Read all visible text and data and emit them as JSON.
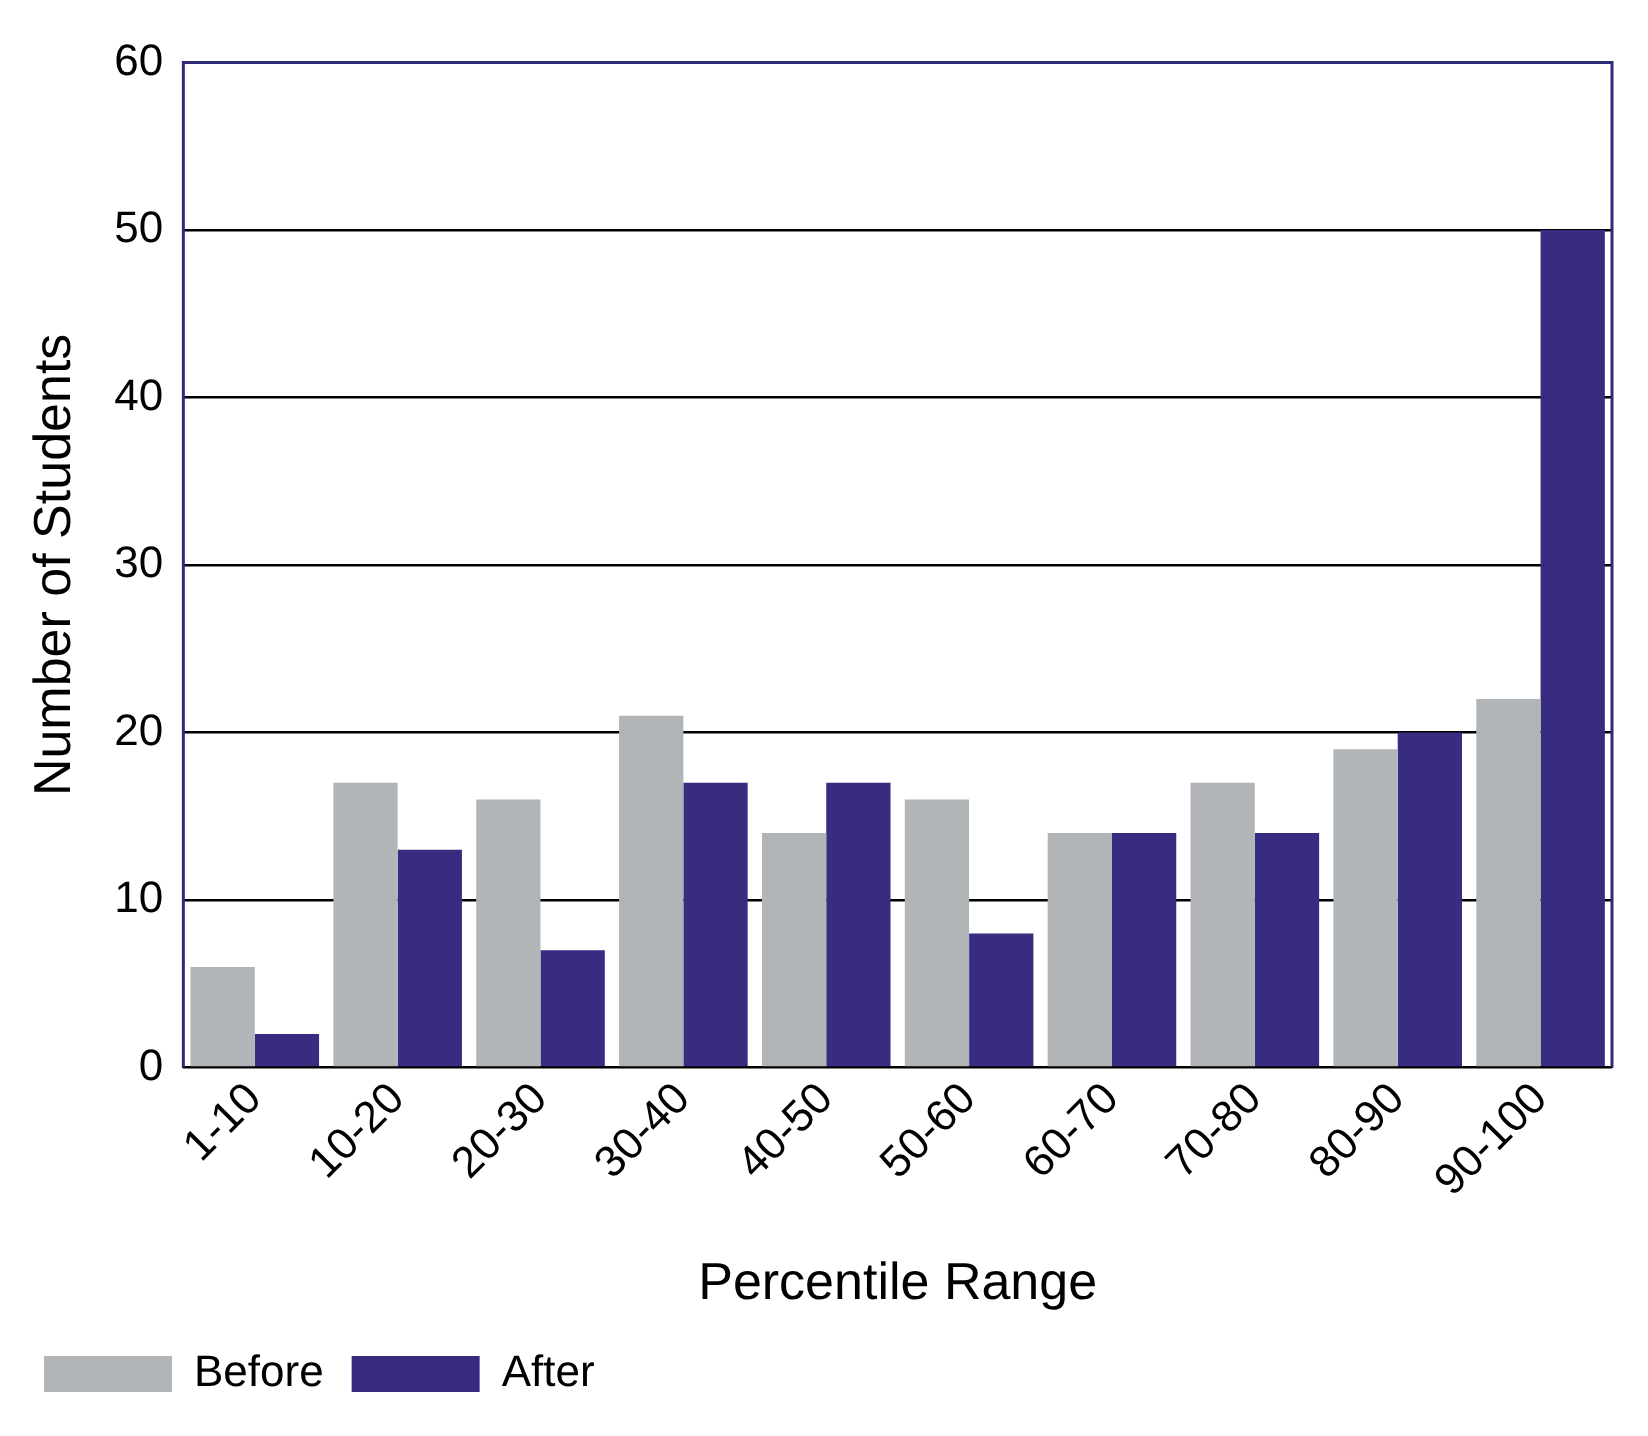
{
  "chart_data": {
    "type": "bar",
    "xlabel": "Percentile Range",
    "ylabel": "Number of Students",
    "categories": [
      "1-10",
      "10-20",
      "20-30",
      "30-40",
      "40-50",
      "50-60",
      "60-70",
      "70-80",
      "80-90",
      "90-100"
    ],
    "series": [
      {
        "name": "Before",
        "color": "#b2b5b8",
        "values": [
          6,
          17,
          16,
          21,
          14,
          16,
          14,
          17,
          19,
          22
        ]
      },
      {
        "name": "After",
        "color": "#372c80",
        "values": [
          2,
          13,
          7,
          17,
          17,
          8,
          14,
          14,
          20,
          50
        ]
      }
    ],
    "ylim": [
      0,
      60
    ],
    "yticks": [
      0,
      10,
      20,
      30,
      40,
      50,
      60
    ],
    "grid": "y",
    "legend": "bottom left"
  }
}
